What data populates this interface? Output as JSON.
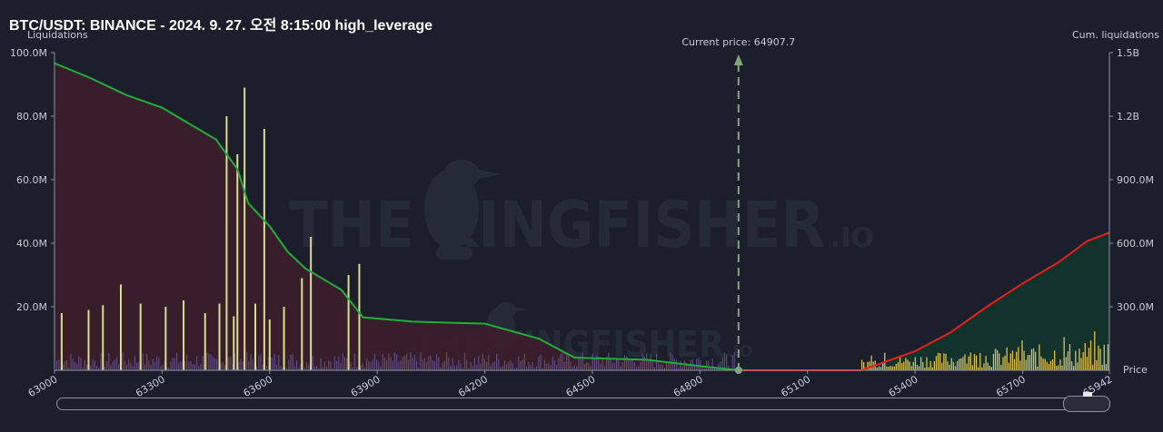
{
  "header": {
    "title": "BTC/USDT: BINANCE - 2024. 9. 27. 오전 8:15:00 high_leverage"
  },
  "watermark": {
    "main": "THE KINGFISHER",
    "suffix": ".IO"
  },
  "chart_data": {
    "type": "bar",
    "left_axis_title": "Liquidations",
    "right_axis_title": "Cum. liquidations",
    "x_axis_title": "Price",
    "current_price_label": "Current price: 64907.7",
    "current_price": 64907.7,
    "xlim": [
      63000,
      65942
    ],
    "x_ticks": [
      "63000",
      "63300",
      "63600",
      "63900",
      "64200",
      "64500",
      "64800",
      "65100",
      "65400",
      "65700",
      "65942"
    ],
    "left_ylim": [
      0,
      100000000
    ],
    "left_ticks": [
      "100.0M",
      "80.0M",
      "60.0M",
      "40.0M",
      "20.0M"
    ],
    "right_ylim": [
      0,
      1500000000
    ],
    "right_ticks": [
      "1.5B",
      "1.2B",
      "900.0M",
      "600.0M",
      "300.0M"
    ],
    "grid": false,
    "colors": {
      "long_bars": "#d8dd93",
      "short_bars": "#d9bf52",
      "small_bars": "#6a5a9a",
      "long_cum_line": "#1fae3a",
      "short_cum_line": "#e3211c",
      "long_fill": "#3a1e2a",
      "short_fill": "#14342c",
      "current_price_line": "#7fa77a"
    },
    "long_liquidation_spikes": [
      {
        "price": 63020,
        "value": 18000000
      },
      {
        "price": 63095,
        "value": 19000000
      },
      {
        "price": 63135,
        "value": 20500000
      },
      {
        "price": 63185,
        "value": 27000000
      },
      {
        "price": 63240,
        "value": 21000000
      },
      {
        "price": 63310,
        "value": 20000000
      },
      {
        "price": 63360,
        "value": 22000000
      },
      {
        "price": 63420,
        "value": 18000000
      },
      {
        "price": 63460,
        "value": 21000000
      },
      {
        "price": 63480,
        "value": 80000000
      },
      {
        "price": 63500,
        "value": 17000000
      },
      {
        "price": 63510,
        "value": 68000000
      },
      {
        "price": 63530,
        "value": 89000000
      },
      {
        "price": 63560,
        "value": 21000000
      },
      {
        "price": 63585,
        "value": 76000000
      },
      {
        "price": 63600,
        "value": 16000000
      },
      {
        "price": 63640,
        "value": 20000000
      },
      {
        "price": 63690,
        "value": 29000000
      },
      {
        "price": 63715,
        "value": 42000000
      },
      {
        "price": 63820,
        "value": 30000000
      },
      {
        "price": 63850,
        "value": 33500000
      }
    ],
    "long_cumulative": [
      {
        "price": 63000,
        "value": 1450000000
      },
      {
        "price": 63100,
        "value": 1380000000
      },
      {
        "price": 63200,
        "value": 1300000000
      },
      {
        "price": 63300,
        "value": 1240000000
      },
      {
        "price": 63450,
        "value": 1090000000
      },
      {
        "price": 63510,
        "value": 950000000
      },
      {
        "price": 63540,
        "value": 790000000
      },
      {
        "price": 63600,
        "value": 680000000
      },
      {
        "price": 63650,
        "value": 560000000
      },
      {
        "price": 63700,
        "value": 480000000
      },
      {
        "price": 63800,
        "value": 380000000
      },
      {
        "price": 63860,
        "value": 250000000
      },
      {
        "price": 64000,
        "value": 230000000
      },
      {
        "price": 64200,
        "value": 220000000
      },
      {
        "price": 64350,
        "value": 150000000
      },
      {
        "price": 64450,
        "value": 60000000
      },
      {
        "price": 64650,
        "value": 50000000
      },
      {
        "price": 64800,
        "value": 20000000
      },
      {
        "price": 64907.7,
        "value": 0
      }
    ],
    "short_cumulative": [
      {
        "price": 64907.7,
        "value": 0
      },
      {
        "price": 65250,
        "value": 0
      },
      {
        "price": 65300,
        "value": 30000000
      },
      {
        "price": 65400,
        "value": 90000000
      },
      {
        "price": 65500,
        "value": 180000000
      },
      {
        "price": 65600,
        "value": 300000000
      },
      {
        "price": 65700,
        "value": 410000000
      },
      {
        "price": 65800,
        "value": 510000000
      },
      {
        "price": 65880,
        "value": 610000000
      },
      {
        "price": 65942,
        "value": 650000000
      }
    ]
  }
}
